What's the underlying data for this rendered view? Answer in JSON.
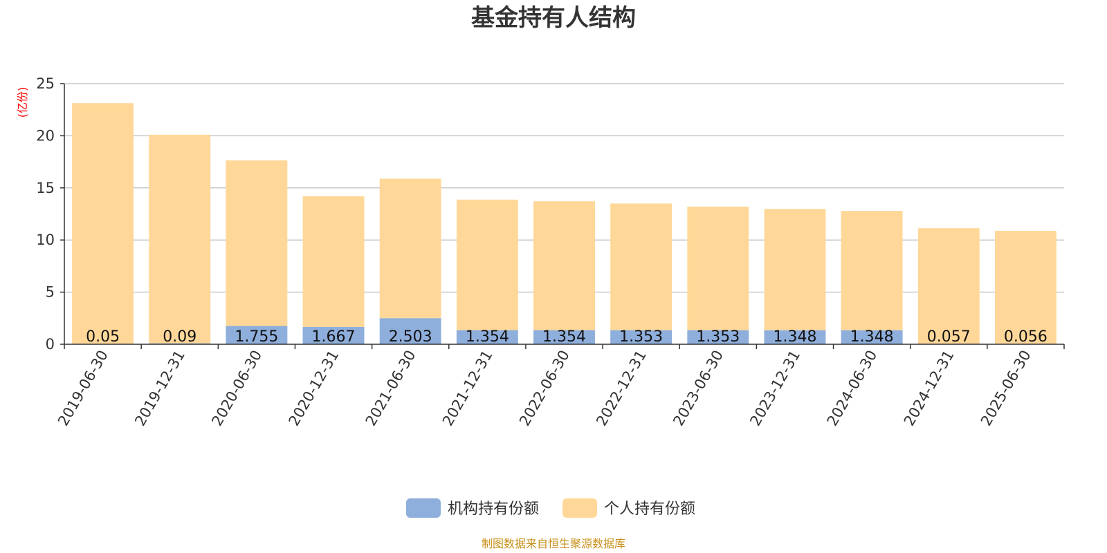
{
  "chart_data": {
    "type": "bar",
    "stacked": true,
    "title": "基金持有人结构",
    "unit_label": "(亿份)",
    "categories": [
      "2019-06-30",
      "2019-12-31",
      "2020-06-30",
      "2020-12-31",
      "2021-06-30",
      "2021-12-31",
      "2022-06-30",
      "2022-12-31",
      "2023-06-30",
      "2023-12-31",
      "2024-06-30",
      "2024-12-31",
      "2025-06-30"
    ],
    "series": [
      {
        "name": "机构持有份额",
        "color": "#8eaedc",
        "values": [
          0.05,
          0.09,
          1.755,
          1.667,
          2.503,
          1.354,
          1.354,
          1.353,
          1.353,
          1.348,
          1.348,
          0.057,
          0.056
        ],
        "labels": [
          "0.05",
          "0.09",
          "1.755",
          "1.667",
          "2.503",
          "1.354",
          "1.354",
          "1.353",
          "1.353",
          "1.348",
          "1.348",
          "0.057",
          "0.056"
        ]
      },
      {
        "name": "个人持有份额",
        "color": "#ffd899",
        "values": [
          23.08,
          20.01,
          15.88,
          12.53,
          13.38,
          12.52,
          12.36,
          12.15,
          11.85,
          11.63,
          11.44,
          11.07,
          10.82
        ]
      }
    ],
    "ylim": [
      0,
      25
    ],
    "yticks": [
      "0",
      "5",
      "10",
      "15",
      "20",
      "25"
    ],
    "grid": true,
    "legend_position": "bottom-center",
    "source": "制图数据来自恒生聚源数据库"
  }
}
